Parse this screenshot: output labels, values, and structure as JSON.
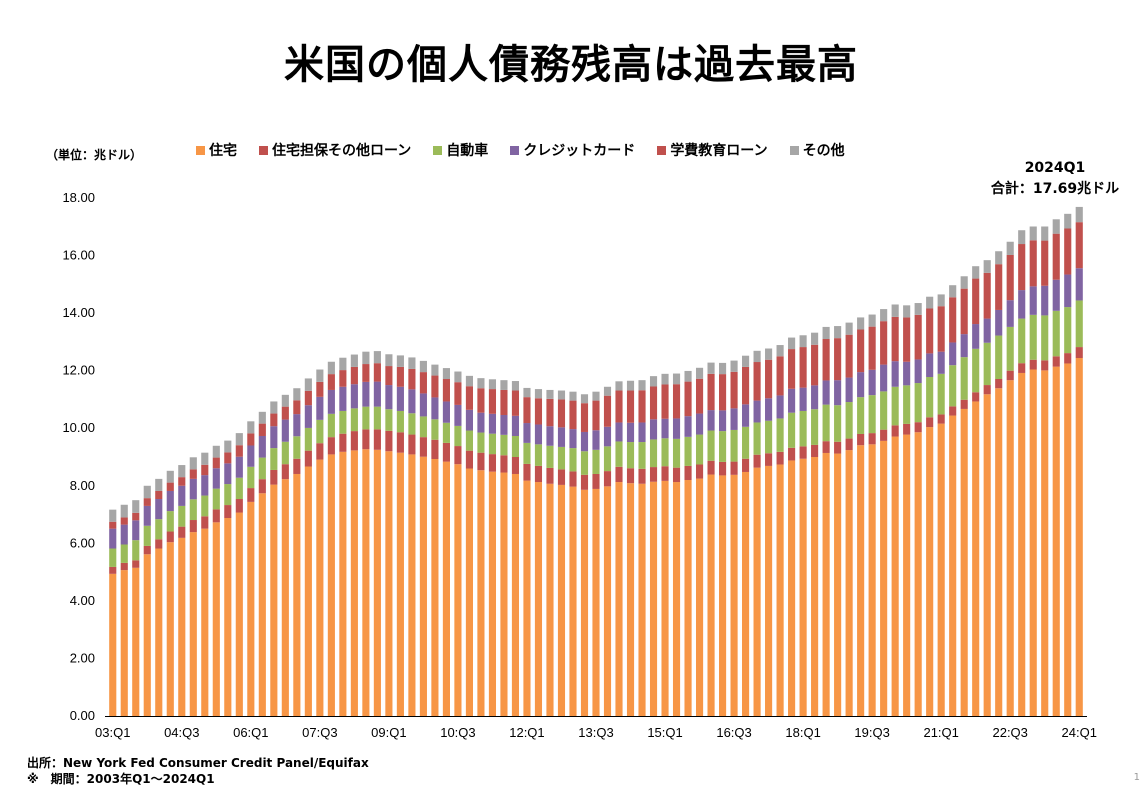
{
  "chart_data": {
    "type": "bar",
    "stacked": true,
    "title": "米国の個人債務残高は過去最高",
    "unit_label": "（単位：兆ドル）",
    "ylim": [
      0,
      18
    ],
    "yticks": [
      "0.00",
      "2.00",
      "4.00",
      "6.00",
      "8.00",
      "10.00",
      "12.00",
      "14.00",
      "16.00",
      "18.00"
    ],
    "grid": false,
    "legend_position": "top",
    "xtick_labels": [
      "03:Q1",
      "04:Q3",
      "06:Q1",
      "07:Q3",
      "09:Q1",
      "10:Q3",
      "12:Q1",
      "13:Q3",
      "15:Q1",
      "16:Q3",
      "18:Q1",
      "19:Q3",
      "21:Q1",
      "22:Q3",
      "24:Q1"
    ],
    "x": [
      "03Q1",
      "03Q2",
      "03Q3",
      "03Q4",
      "04Q1",
      "04Q2",
      "04Q3",
      "04Q4",
      "05Q1",
      "05Q2",
      "05Q3",
      "05Q4",
      "06Q1",
      "06Q2",
      "06Q3",
      "06Q4",
      "07Q1",
      "07Q2",
      "07Q3",
      "07Q4",
      "08Q1",
      "08Q2",
      "08Q3",
      "08Q4",
      "09Q1",
      "09Q2",
      "09Q3",
      "09Q4",
      "10Q1",
      "10Q2",
      "10Q3",
      "10Q4",
      "11Q1",
      "11Q2",
      "11Q3",
      "11Q4",
      "12Q1",
      "12Q2",
      "12Q3",
      "12Q4",
      "13Q1",
      "13Q2",
      "13Q3",
      "13Q4",
      "14Q1",
      "14Q2",
      "14Q3",
      "14Q4",
      "15Q1",
      "15Q2",
      "15Q3",
      "15Q4",
      "16Q1",
      "16Q2",
      "16Q3",
      "16Q4",
      "17Q1",
      "17Q2",
      "17Q3",
      "17Q4",
      "18Q1",
      "18Q2",
      "18Q3",
      "18Q4",
      "19Q1",
      "19Q2",
      "19Q3",
      "19Q4",
      "20Q1",
      "20Q2",
      "20Q3",
      "20Q4",
      "21Q1",
      "21Q2",
      "21Q3",
      "21Q4",
      "22Q1",
      "22Q2",
      "22Q3",
      "22Q4",
      "23Q1",
      "23Q2",
      "23Q3",
      "23Q4",
      "24Q1"
    ],
    "series": [
      {
        "name": "住宅",
        "color": "#F79646",
        "values": [
          4.94,
          5.07,
          5.15,
          5.62,
          5.82,
          6.04,
          6.19,
          6.39,
          6.51,
          6.73,
          6.88,
          7.07,
          7.44,
          7.74,
          8.04,
          8.23,
          8.41,
          8.67,
          8.91,
          9.09,
          9.18,
          9.23,
          9.27,
          9.25,
          9.2,
          9.15,
          9.09,
          9.01,
          8.93,
          8.84,
          8.75,
          8.6,
          8.54,
          8.49,
          8.46,
          8.41,
          8.18,
          8.13,
          8.07,
          8.03,
          7.97,
          7.86,
          7.89,
          7.98,
          8.13,
          8.09,
          8.07,
          8.14,
          8.17,
          8.13,
          8.2,
          8.25,
          8.39,
          8.36,
          8.38,
          8.48,
          8.63,
          8.69,
          8.74,
          8.88,
          8.94,
          9.0,
          9.14,
          9.12,
          9.24,
          9.41,
          9.44,
          9.56,
          9.71,
          9.78,
          9.86,
          10.04,
          10.16,
          10.44,
          10.67,
          10.93,
          11.18,
          11.39,
          11.67,
          11.92,
          12.04,
          12.01,
          12.14,
          12.25,
          12.44
        ]
      },
      {
        "name": "住宅担保その他ローン",
        "color": "#C0504D",
        "values": [
          0.24,
          0.25,
          0.26,
          0.29,
          0.32,
          0.37,
          0.39,
          0.42,
          0.43,
          0.45,
          0.45,
          0.47,
          0.48,
          0.49,
          0.51,
          0.52,
          0.53,
          0.55,
          0.57,
          0.6,
          0.63,
          0.67,
          0.69,
          0.71,
          0.71,
          0.71,
          0.69,
          0.68,
          0.67,
          0.65,
          0.63,
          0.62,
          0.61,
          0.61,
          0.6,
          0.59,
          0.58,
          0.56,
          0.55,
          0.54,
          0.53,
          0.52,
          0.52,
          0.53,
          0.53,
          0.52,
          0.52,
          0.51,
          0.51,
          0.5,
          0.49,
          0.49,
          0.48,
          0.47,
          0.46,
          0.46,
          0.45,
          0.44,
          0.44,
          0.44,
          0.43,
          0.42,
          0.41,
          0.41,
          0.4,
          0.39,
          0.39,
          0.39,
          0.39,
          0.37,
          0.35,
          0.34,
          0.32,
          0.32,
          0.32,
          0.32,
          0.32,
          0.32,
          0.33,
          0.34,
          0.34,
          0.35,
          0.36,
          0.36,
          0.38
        ]
      },
      {
        "name": "自動車",
        "color": "#9BBB59",
        "values": [
          0.64,
          0.64,
          0.7,
          0.7,
          0.7,
          0.71,
          0.72,
          0.72,
          0.72,
          0.72,
          0.73,
          0.74,
          0.74,
          0.75,
          0.76,
          0.78,
          0.78,
          0.79,
          0.81,
          0.81,
          0.79,
          0.79,
          0.79,
          0.79,
          0.75,
          0.74,
          0.74,
          0.72,
          0.71,
          0.7,
          0.7,
          0.7,
          0.7,
          0.71,
          0.71,
          0.73,
          0.73,
          0.75,
          0.77,
          0.78,
          0.81,
          0.82,
          0.84,
          0.86,
          0.88,
          0.91,
          0.93,
          0.96,
          0.97,
          1.0,
          1.01,
          1.04,
          1.05,
          1.07,
          1.1,
          1.11,
          1.12,
          1.13,
          1.16,
          1.22,
          1.23,
          1.24,
          1.27,
          1.27,
          1.27,
          1.28,
          1.32,
          1.33,
          1.34,
          1.34,
          1.36,
          1.4,
          1.41,
          1.43,
          1.48,
          1.51,
          1.47,
          1.51,
          1.52,
          1.55,
          1.56,
          1.56,
          1.58,
          1.6,
          1.62
        ]
      },
      {
        "name": "クレジットカード",
        "color": "#8064A2",
        "values": [
          0.69,
          0.69,
          0.69,
          0.69,
          0.7,
          0.7,
          0.7,
          0.71,
          0.71,
          0.71,
          0.72,
          0.73,
          0.74,
          0.75,
          0.76,
          0.77,
          0.77,
          0.79,
          0.8,
          0.83,
          0.84,
          0.84,
          0.86,
          0.87,
          0.84,
          0.84,
          0.83,
          0.8,
          0.76,
          0.74,
          0.73,
          0.72,
          0.69,
          0.69,
          0.69,
          0.7,
          0.69,
          0.69,
          0.68,
          0.68,
          0.66,
          0.67,
          0.68,
          0.68,
          0.66,
          0.67,
          0.68,
          0.7,
          0.68,
          0.71,
          0.72,
          0.73,
          0.71,
          0.72,
          0.75,
          0.78,
          0.76,
          0.78,
          0.8,
          0.83,
          0.81,
          0.83,
          0.84,
          0.87,
          0.85,
          0.87,
          0.88,
          0.93,
          0.89,
          0.82,
          0.82,
          0.82,
          0.77,
          0.79,
          0.8,
          0.86,
          0.84,
          0.89,
          0.93,
          0.99,
          0.99,
          1.03,
          1.08,
          1.13,
          1.12
        ]
      },
      {
        "name": "学費教育ローン",
        "color": "#C0504D",
        "values": [
          0.24,
          0.25,
          0.26,
          0.27,
          0.28,
          0.29,
          0.3,
          0.33,
          0.36,
          0.37,
          0.38,
          0.4,
          0.42,
          0.43,
          0.44,
          0.45,
          0.48,
          0.5,
          0.52,
          0.55,
          0.58,
          0.6,
          0.62,
          0.64,
          0.66,
          0.69,
          0.71,
          0.74,
          0.76,
          0.78,
          0.79,
          0.82,
          0.85,
          0.86,
          0.87,
          0.88,
          0.9,
          0.91,
          0.95,
          0.97,
          0.99,
          1.0,
          1.03,
          1.08,
          1.11,
          1.12,
          1.12,
          1.14,
          1.19,
          1.19,
          1.2,
          1.21,
          1.26,
          1.26,
          1.27,
          1.3,
          1.34,
          1.34,
          1.36,
          1.38,
          1.41,
          1.41,
          1.44,
          1.46,
          1.49,
          1.48,
          1.5,
          1.51,
          1.54,
          1.54,
          1.55,
          1.56,
          1.58,
          1.57,
          1.58,
          1.58,
          1.59,
          1.59,
          1.57,
          1.6,
          1.6,
          1.57,
          1.6,
          1.6,
          1.6
        ]
      },
      {
        "name": "その他",
        "color": "#A6A6A6",
        "values": [
          0.42,
          0.44,
          0.44,
          0.43,
          0.42,
          0.41,
          0.42,
          0.42,
          0.42,
          0.41,
          0.41,
          0.42,
          0.42,
          0.41,
          0.42,
          0.41,
          0.42,
          0.43,
          0.43,
          0.43,
          0.43,
          0.43,
          0.43,
          0.42,
          0.41,
          0.4,
          0.4,
          0.39,
          0.38,
          0.38,
          0.37,
          0.36,
          0.35,
          0.34,
          0.34,
          0.33,
          0.32,
          0.32,
          0.31,
          0.31,
          0.31,
          0.31,
          0.31,
          0.31,
          0.32,
          0.34,
          0.35,
          0.36,
          0.37,
          0.37,
          0.37,
          0.38,
          0.39,
          0.39,
          0.39,
          0.39,
          0.39,
          0.39,
          0.39,
          0.4,
          0.41,
          0.42,
          0.42,
          0.42,
          0.42,
          0.42,
          0.42,
          0.42,
          0.43,
          0.42,
          0.41,
          0.41,
          0.41,
          0.42,
          0.43,
          0.43,
          0.44,
          0.45,
          0.46,
          0.48,
          0.48,
          0.49,
          0.5,
          0.51,
          0.53
        ]
      }
    ],
    "annotation": {
      "line1": "2024Q1",
      "line2": "合計：17.69兆ドル"
    }
  },
  "footer": {
    "source": "出所：New York Fed Consumer Credit Panel/Equifax",
    "period": "※　期間：2003年Q1～2024Q1"
  },
  "corner_mark": "1"
}
